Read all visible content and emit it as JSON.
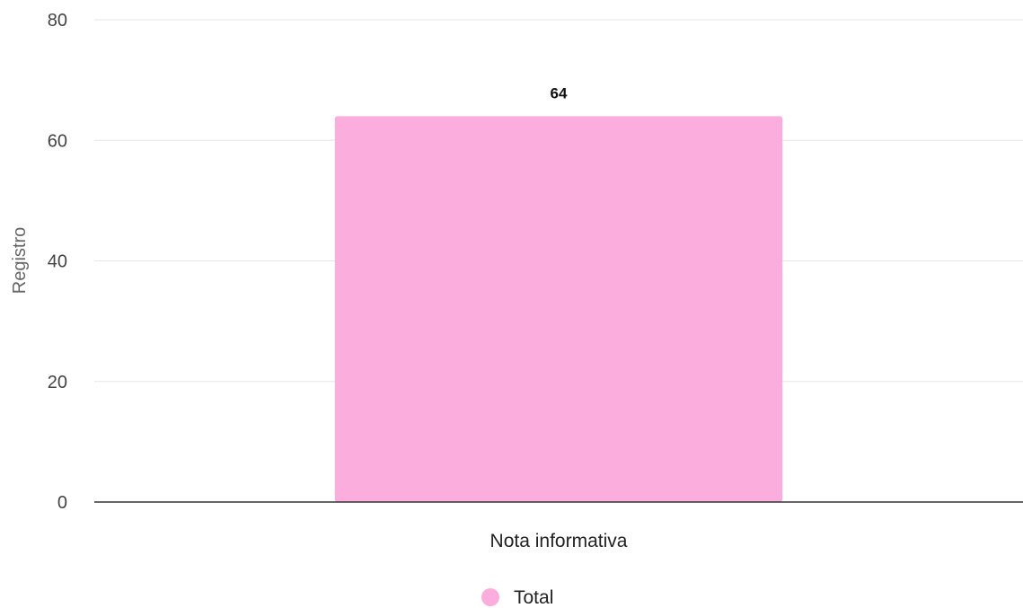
{
  "chart_data": {
    "type": "bar",
    "categories": [
      "Nota informativa"
    ],
    "series": [
      {
        "name": "Total",
        "values": [
          64
        ],
        "color": "#FBADDE"
      }
    ],
    "data_labels": [
      "64"
    ],
    "xlabel": "",
    "ylabel": "Registro",
    "ylim": [
      0,
      80
    ],
    "yticks": [
      0,
      20,
      40,
      60,
      80
    ],
    "ytick_labels": [
      "0",
      "20",
      "40",
      "60",
      "80"
    ],
    "grid": true,
    "legend": {
      "position": "bottom",
      "entries": [
        "Total"
      ]
    }
  },
  "colors": {
    "bar": "#FBADDE",
    "grid": "#e6e6e6",
    "baseline": "#333333"
  }
}
